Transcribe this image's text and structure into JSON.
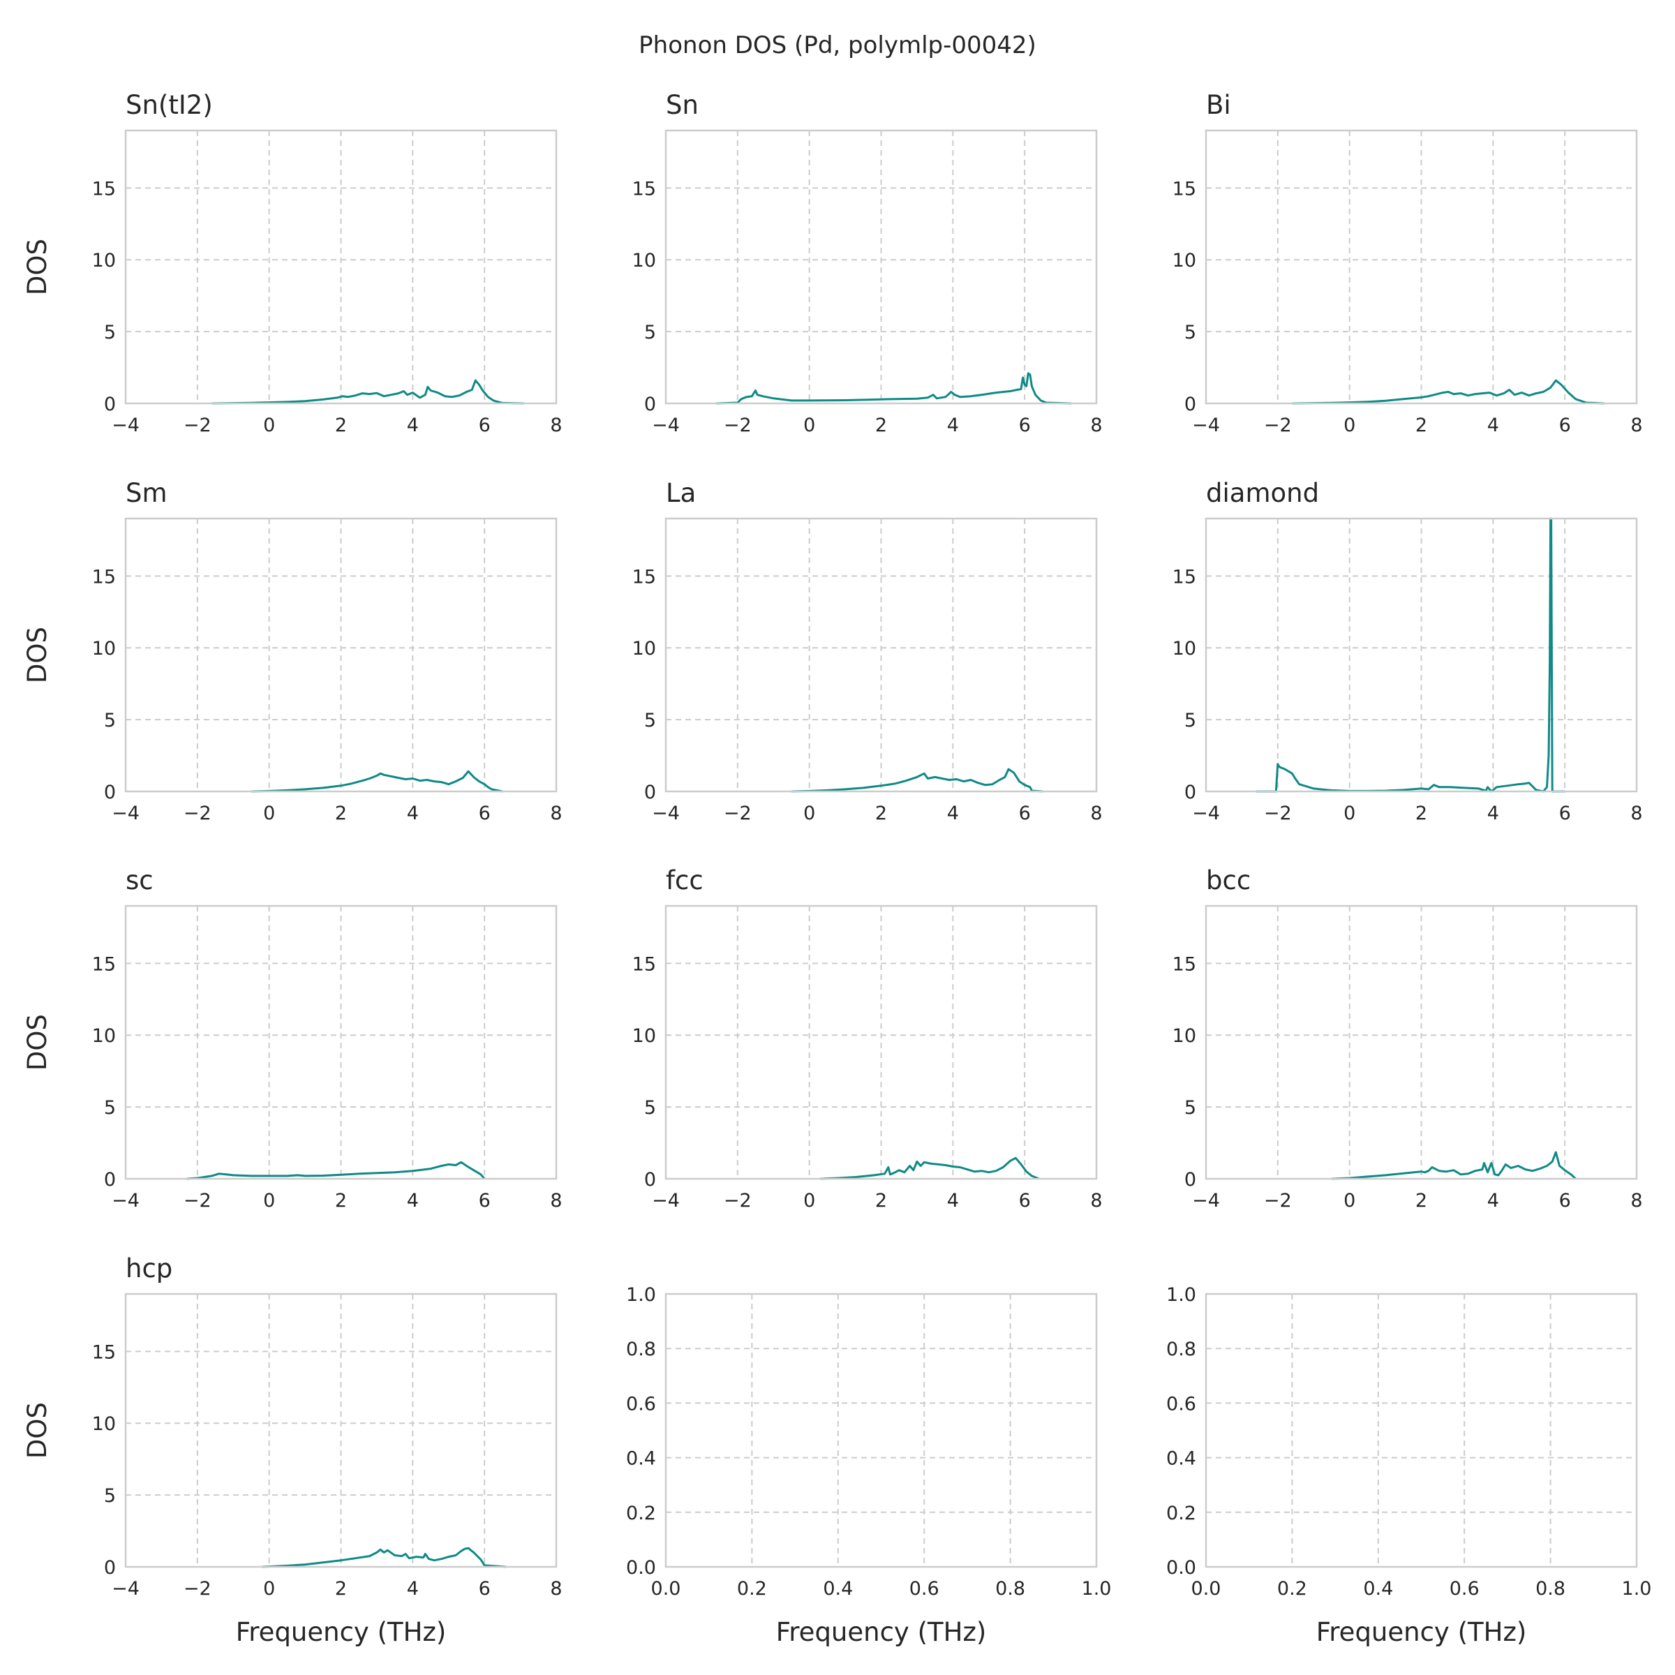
{
  "figure": {
    "title": "Phonon DOS (Pd, polymlp-00042)",
    "line_color": "#0e8a87",
    "grid": true
  },
  "chart_data": [
    {
      "type": "line",
      "title": "Sn(tI2)",
      "xlabel": "",
      "ylabel": "DOS",
      "xlim": [
        -4,
        8
      ],
      "ylim": [
        0,
        19
      ],
      "xticks": [
        "−4",
        "−2",
        "0",
        "2",
        "4",
        "6",
        "8"
      ],
      "xtick_values": [
        -4,
        -2,
        0,
        2,
        4,
        6,
        8
      ],
      "yticks": [
        "0",
        "5",
        "10",
        "15"
      ],
      "ytick_values": [
        0,
        5,
        10,
        15
      ],
      "series": [
        {
          "x": [
            -1.6,
            -1.0,
            -0.5,
            0.0,
            0.5,
            1.0,
            1.5,
            1.9,
            2.05,
            2.2,
            2.4,
            2.6,
            2.8,
            3.0,
            3.2,
            3.4,
            3.6,
            3.75,
            3.85,
            4.0,
            4.2,
            4.35,
            4.42,
            4.5,
            4.7,
            4.9,
            5.1,
            5.3,
            5.5,
            5.65,
            5.75,
            5.85,
            5.95,
            6.1,
            6.25,
            6.5,
            7.1
          ],
          "y": [
            0.0,
            0.02,
            0.04,
            0.07,
            0.1,
            0.16,
            0.27,
            0.4,
            0.5,
            0.45,
            0.55,
            0.7,
            0.65,
            0.72,
            0.5,
            0.6,
            0.7,
            0.85,
            0.6,
            0.75,
            0.4,
            0.6,
            1.15,
            0.9,
            0.75,
            0.5,
            0.45,
            0.55,
            0.8,
            0.95,
            1.6,
            1.3,
            0.9,
            0.45,
            0.2,
            0.03,
            0.0
          ]
        }
      ]
    },
    {
      "type": "line",
      "title": "Sn",
      "xlabel": "",
      "ylabel": "",
      "xlim": [
        -4,
        8
      ],
      "ylim": [
        0,
        19
      ],
      "xticks": [
        "−4",
        "−2",
        "0",
        "2",
        "4",
        "6",
        "8"
      ],
      "xtick_values": [
        -4,
        -2,
        0,
        2,
        4,
        6,
        8
      ],
      "yticks": [
        "0",
        "5",
        "10",
        "15"
      ],
      "ytick_values": [
        0,
        5,
        10,
        15
      ],
      "series": [
        {
          "x": [
            -2.6,
            -2.0,
            -1.9,
            -1.75,
            -1.6,
            -1.5,
            -1.45,
            -1.3,
            -1.0,
            -0.5,
            0.0,
            1.0,
            2.0,
            3.0,
            3.3,
            3.45,
            3.55,
            3.8,
            3.95,
            4.05,
            4.2,
            4.5,
            4.8,
            5.2,
            5.6,
            5.9,
            5.95,
            6.0,
            6.05,
            6.1,
            6.15,
            6.2,
            6.3,
            6.45,
            6.6,
            7.3
          ],
          "y": [
            0.0,
            0.05,
            0.3,
            0.45,
            0.5,
            0.9,
            0.6,
            0.5,
            0.35,
            0.2,
            0.2,
            0.22,
            0.28,
            0.33,
            0.4,
            0.6,
            0.35,
            0.45,
            0.8,
            0.6,
            0.45,
            0.5,
            0.6,
            0.75,
            0.85,
            1.0,
            1.8,
            1.3,
            1.2,
            2.1,
            2.0,
            1.2,
            0.6,
            0.2,
            0.05,
            0.0
          ]
        }
      ]
    },
    {
      "type": "line",
      "title": "Bi",
      "xlabel": "",
      "ylabel": "",
      "xlim": [
        -4,
        8
      ],
      "ylim": [
        0,
        19
      ],
      "xticks": [
        "−4",
        "−2",
        "0",
        "2",
        "4",
        "6",
        "8"
      ],
      "xtick_values": [
        -4,
        -2,
        0,
        2,
        4,
        6,
        8
      ],
      "yticks": [
        "0",
        "5",
        "10",
        "15"
      ],
      "ytick_values": [
        0,
        5,
        10,
        15
      ],
      "series": [
        {
          "x": [
            -1.6,
            -1.0,
            -0.5,
            0.0,
            0.5,
            1.0,
            1.5,
            2.0,
            2.2,
            2.4,
            2.6,
            2.75,
            2.9,
            3.1,
            3.3,
            3.5,
            3.7,
            3.9,
            4.1,
            4.3,
            4.45,
            4.6,
            4.8,
            5.0,
            5.2,
            5.4,
            5.6,
            5.75,
            5.9,
            6.1,
            6.3,
            6.6,
            7.1
          ],
          "y": [
            0.0,
            0.02,
            0.04,
            0.07,
            0.11,
            0.18,
            0.3,
            0.42,
            0.5,
            0.62,
            0.75,
            0.8,
            0.65,
            0.7,
            0.55,
            0.65,
            0.7,
            0.75,
            0.55,
            0.7,
            0.95,
            0.6,
            0.75,
            0.55,
            0.7,
            0.8,
            1.1,
            1.6,
            1.3,
            0.75,
            0.3,
            0.05,
            0.0
          ]
        }
      ]
    },
    {
      "type": "line",
      "title": "Sm",
      "xlabel": "",
      "ylabel": "DOS",
      "xlim": [
        -4,
        8
      ],
      "ylim": [
        0,
        19
      ],
      "xticks": [
        "−4",
        "−2",
        "0",
        "2",
        "4",
        "6",
        "8"
      ],
      "xtick_values": [
        -4,
        -2,
        0,
        2,
        4,
        6,
        8
      ],
      "yticks": [
        "0",
        "5",
        "10",
        "15"
      ],
      "ytick_values": [
        0,
        5,
        10,
        15
      ],
      "series": [
        {
          "x": [
            -0.5,
            0.0,
            0.5,
            1.0,
            1.5,
            2.0,
            2.3,
            2.6,
            2.8,
            3.0,
            3.1,
            3.2,
            3.4,
            3.6,
            3.8,
            4.0,
            4.2,
            4.4,
            4.6,
            4.8,
            5.0,
            5.2,
            5.4,
            5.55,
            5.7,
            5.85,
            6.0,
            6.1,
            6.2,
            6.5
          ],
          "y": [
            0.0,
            0.03,
            0.08,
            0.15,
            0.25,
            0.4,
            0.55,
            0.75,
            0.9,
            1.1,
            1.25,
            1.15,
            1.05,
            0.95,
            0.85,
            0.9,
            0.75,
            0.8,
            0.7,
            0.65,
            0.5,
            0.7,
            0.95,
            1.4,
            1.0,
            0.7,
            0.5,
            0.3,
            0.15,
            0.0
          ]
        }
      ]
    },
    {
      "type": "line",
      "title": "La",
      "xlabel": "",
      "ylabel": "",
      "xlim": [
        -4,
        8
      ],
      "ylim": [
        0,
        19
      ],
      "xticks": [
        "−4",
        "−2",
        "0",
        "2",
        "4",
        "6",
        "8"
      ],
      "xtick_values": [
        -4,
        -2,
        0,
        2,
        4,
        6,
        8
      ],
      "yticks": [
        "0",
        "5",
        "10",
        "15"
      ],
      "ytick_values": [
        0,
        5,
        10,
        15
      ],
      "series": [
        {
          "x": [
            -0.5,
            0.0,
            0.5,
            1.0,
            1.5,
            2.0,
            2.4,
            2.7,
            3.0,
            3.2,
            3.3,
            3.5,
            3.7,
            3.9,
            4.1,
            4.3,
            4.5,
            4.7,
            4.9,
            5.1,
            5.3,
            5.45,
            5.55,
            5.7,
            5.85,
            6.0,
            6.15,
            6.2,
            6.5
          ],
          "y": [
            0.0,
            0.03,
            0.08,
            0.15,
            0.25,
            0.4,
            0.55,
            0.75,
            1.0,
            1.25,
            0.9,
            1.0,
            0.9,
            0.8,
            0.85,
            0.7,
            0.8,
            0.6,
            0.45,
            0.5,
            0.8,
            1.0,
            1.55,
            1.3,
            0.7,
            0.45,
            0.3,
            0.05,
            0.0
          ]
        }
      ]
    },
    {
      "type": "line",
      "title": "diamond",
      "xlabel": "",
      "ylabel": "",
      "xlim": [
        -4,
        8
      ],
      "ylim": [
        0,
        19
      ],
      "xticks": [
        "−4",
        "−2",
        "0",
        "2",
        "4",
        "6",
        "8"
      ],
      "xtick_values": [
        -4,
        -2,
        0,
        2,
        4,
        6,
        8
      ],
      "yticks": [
        "0",
        "5",
        "10",
        "15"
      ],
      "ytick_values": [
        0,
        5,
        10,
        15
      ],
      "series": [
        {
          "x": [
            -2.6,
            -2.05,
            -2.0,
            -1.95,
            -1.8,
            -1.6,
            -1.5,
            -1.4,
            -1.2,
            -1.0,
            -0.5,
            0.0,
            0.5,
            1.0,
            1.5,
            2.0,
            2.2,
            2.35,
            2.5,
            2.8,
            3.2,
            3.6,
            3.8,
            3.85,
            3.95,
            4.1,
            4.4,
            4.7,
            4.9,
            5.0,
            5.2,
            5.4,
            5.5,
            5.55,
            5.58,
            5.6,
            5.62,
            5.65,
            5.7,
            5.75,
            6.0
          ],
          "y": [
            0.0,
            0.0,
            1.9,
            1.7,
            1.55,
            1.25,
            0.85,
            0.5,
            0.35,
            0.2,
            0.08,
            0.03,
            0.03,
            0.05,
            0.1,
            0.2,
            0.15,
            0.45,
            0.3,
            0.3,
            0.25,
            0.2,
            0.05,
            0.3,
            0.0,
            0.3,
            0.4,
            0.5,
            0.55,
            0.6,
            0.1,
            0.0,
            0.3,
            2.5,
            9.0,
            19.0,
            19.0,
            0.0,
            0.0,
            0.0,
            0.0
          ]
        }
      ]
    },
    {
      "type": "line",
      "title": "sc",
      "xlabel": "",
      "ylabel": "DOS",
      "xlim": [
        -4,
        8
      ],
      "ylim": [
        0,
        19
      ],
      "xticks": [
        "−4",
        "−2",
        "0",
        "2",
        "4",
        "6",
        "8"
      ],
      "xtick_values": [
        -4,
        -2,
        0,
        2,
        4,
        6,
        8
      ],
      "yticks": [
        "0",
        "5",
        "10",
        "15"
      ],
      "ytick_values": [
        0,
        5,
        10,
        15
      ],
      "series": [
        {
          "x": [
            -2.3,
            -2.0,
            -1.6,
            -1.4,
            -1.2,
            -1.0,
            -0.5,
            0.0,
            0.5,
            0.8,
            1.0,
            1.5,
            2.0,
            2.5,
            3.0,
            3.5,
            4.0,
            4.5,
            4.8,
            5.0,
            5.2,
            5.35,
            5.5,
            5.7,
            5.9,
            6.0
          ],
          "y": [
            0.0,
            0.05,
            0.2,
            0.35,
            0.3,
            0.25,
            0.2,
            0.2,
            0.2,
            0.25,
            0.2,
            0.22,
            0.28,
            0.35,
            0.4,
            0.45,
            0.55,
            0.7,
            0.9,
            1.0,
            0.95,
            1.15,
            0.9,
            0.6,
            0.3,
            0.0
          ]
        }
      ]
    },
    {
      "type": "line",
      "title": "fcc",
      "xlabel": "",
      "ylabel": "",
      "xlim": [
        -4,
        8
      ],
      "ylim": [
        0,
        19
      ],
      "xticks": [
        "−4",
        "−2",
        "0",
        "2",
        "4",
        "6",
        "8"
      ],
      "xtick_values": [
        -4,
        -2,
        0,
        2,
        4,
        6,
        8
      ],
      "yticks": [
        "0",
        "5",
        "10",
        "15"
      ],
      "ytick_values": [
        0,
        5,
        10,
        15
      ],
      "series": [
        {
          "x": [
            0.3,
            0.8,
            1.3,
            1.8,
            2.1,
            2.2,
            2.25,
            2.35,
            2.5,
            2.65,
            2.8,
            2.9,
            3.0,
            3.1,
            3.2,
            3.4,
            3.6,
            3.8,
            4.0,
            4.2,
            4.4,
            4.6,
            4.8,
            5.0,
            5.2,
            5.4,
            5.6,
            5.75,
            5.9,
            6.05,
            6.2,
            6.4
          ],
          "y": [
            0.0,
            0.05,
            0.12,
            0.25,
            0.35,
            0.8,
            0.3,
            0.4,
            0.6,
            0.45,
            0.9,
            0.6,
            1.2,
            0.9,
            1.15,
            1.05,
            1.0,
            0.95,
            0.85,
            0.8,
            0.65,
            0.5,
            0.55,
            0.45,
            0.55,
            0.8,
            1.25,
            1.45,
            1.0,
            0.5,
            0.2,
            0.0
          ]
        }
      ]
    },
    {
      "type": "line",
      "title": "bcc",
      "xlabel": "",
      "ylabel": "",
      "xlim": [
        -4,
        8
      ],
      "ylim": [
        0,
        19
      ],
      "xticks": [
        "−4",
        "−2",
        "0",
        "2",
        "4",
        "6",
        "8"
      ],
      "xtick_values": [
        -4,
        -2,
        0,
        2,
        4,
        6,
        8
      ],
      "yticks": [
        "0",
        "5",
        "10",
        "15"
      ],
      "ytick_values": [
        0,
        5,
        10,
        15
      ],
      "series": [
        {
          "x": [
            -0.5,
            0.0,
            0.5,
            1.0,
            1.5,
            2.0,
            2.1,
            2.2,
            2.3,
            2.5,
            2.7,
            2.9,
            3.1,
            3.3,
            3.5,
            3.7,
            3.75,
            3.85,
            3.95,
            4.05,
            4.15,
            4.25,
            4.35,
            4.5,
            4.7,
            4.9,
            5.1,
            5.3,
            5.5,
            5.65,
            5.75,
            5.85,
            6.0,
            6.2,
            6.3
          ],
          "y": [
            0.0,
            0.05,
            0.15,
            0.25,
            0.38,
            0.5,
            0.45,
            0.55,
            0.8,
            0.55,
            0.5,
            0.6,
            0.3,
            0.35,
            0.55,
            0.65,
            1.1,
            0.45,
            1.1,
            0.3,
            0.25,
            0.6,
            1.0,
            0.75,
            0.9,
            0.65,
            0.55,
            0.7,
            0.9,
            1.2,
            1.85,
            0.9,
            0.6,
            0.25,
            0.0
          ]
        }
      ]
    },
    {
      "type": "line",
      "title": "hcp",
      "xlabel": "Frequency (THz)",
      "ylabel": "DOS",
      "xlim": [
        -4,
        8
      ],
      "ylim": [
        0,
        19
      ],
      "xticks": [
        "−4",
        "−2",
        "0",
        "2",
        "4",
        "6",
        "8"
      ],
      "xtick_values": [
        -4,
        -2,
        0,
        2,
        4,
        6,
        8
      ],
      "yticks": [
        "0",
        "5",
        "10",
        "15"
      ],
      "ytick_values": [
        0,
        5,
        10,
        15
      ],
      "series": [
        {
          "x": [
            -0.2,
            0.0,
            0.5,
            1.0,
            1.5,
            2.0,
            2.4,
            2.8,
            3.0,
            3.1,
            3.2,
            3.3,
            3.5,
            3.7,
            3.8,
            3.9,
            4.1,
            4.3,
            4.35,
            4.45,
            4.6,
            4.8,
            5.0,
            5.2,
            5.35,
            5.45,
            5.55,
            5.7,
            5.9,
            6.0,
            6.6
          ],
          "y": [
            0.0,
            0.02,
            0.08,
            0.16,
            0.3,
            0.45,
            0.6,
            0.75,
            1.0,
            1.2,
            1.0,
            1.15,
            0.8,
            0.75,
            0.9,
            0.6,
            0.7,
            0.65,
            0.9,
            0.55,
            0.45,
            0.55,
            0.7,
            0.8,
            1.1,
            1.25,
            1.3,
            1.0,
            0.5,
            0.1,
            0.0
          ]
        }
      ]
    },
    {
      "type": "line",
      "title": "",
      "xlabel": "Frequency (THz)",
      "ylabel": "",
      "xlim": [
        0,
        1
      ],
      "ylim": [
        0,
        1
      ],
      "xticks": [
        "0.0",
        "0.2",
        "0.4",
        "0.6",
        "0.8",
        "1.0"
      ],
      "xtick_values": [
        0,
        0.2,
        0.4,
        0.6,
        0.8,
        1.0
      ],
      "yticks": [
        "0.0",
        "0.2",
        "0.4",
        "0.6",
        "0.8",
        "1.0"
      ],
      "ytick_values": [
        0,
        0.2,
        0.4,
        0.6,
        0.8,
        1.0
      ],
      "series": []
    },
    {
      "type": "line",
      "title": "",
      "xlabel": "Frequency (THz)",
      "ylabel": "",
      "xlim": [
        0,
        1
      ],
      "ylim": [
        0,
        1
      ],
      "xticks": [
        "0.0",
        "0.2",
        "0.4",
        "0.6",
        "0.8",
        "1.0"
      ],
      "xtick_values": [
        0,
        0.2,
        0.4,
        0.6,
        0.8,
        1.0
      ],
      "yticks": [
        "0.0",
        "0.2",
        "0.4",
        "0.6",
        "0.8",
        "1.0"
      ],
      "ytick_values": [
        0,
        0.2,
        0.4,
        0.6,
        0.8,
        1.0
      ],
      "series": []
    }
  ]
}
